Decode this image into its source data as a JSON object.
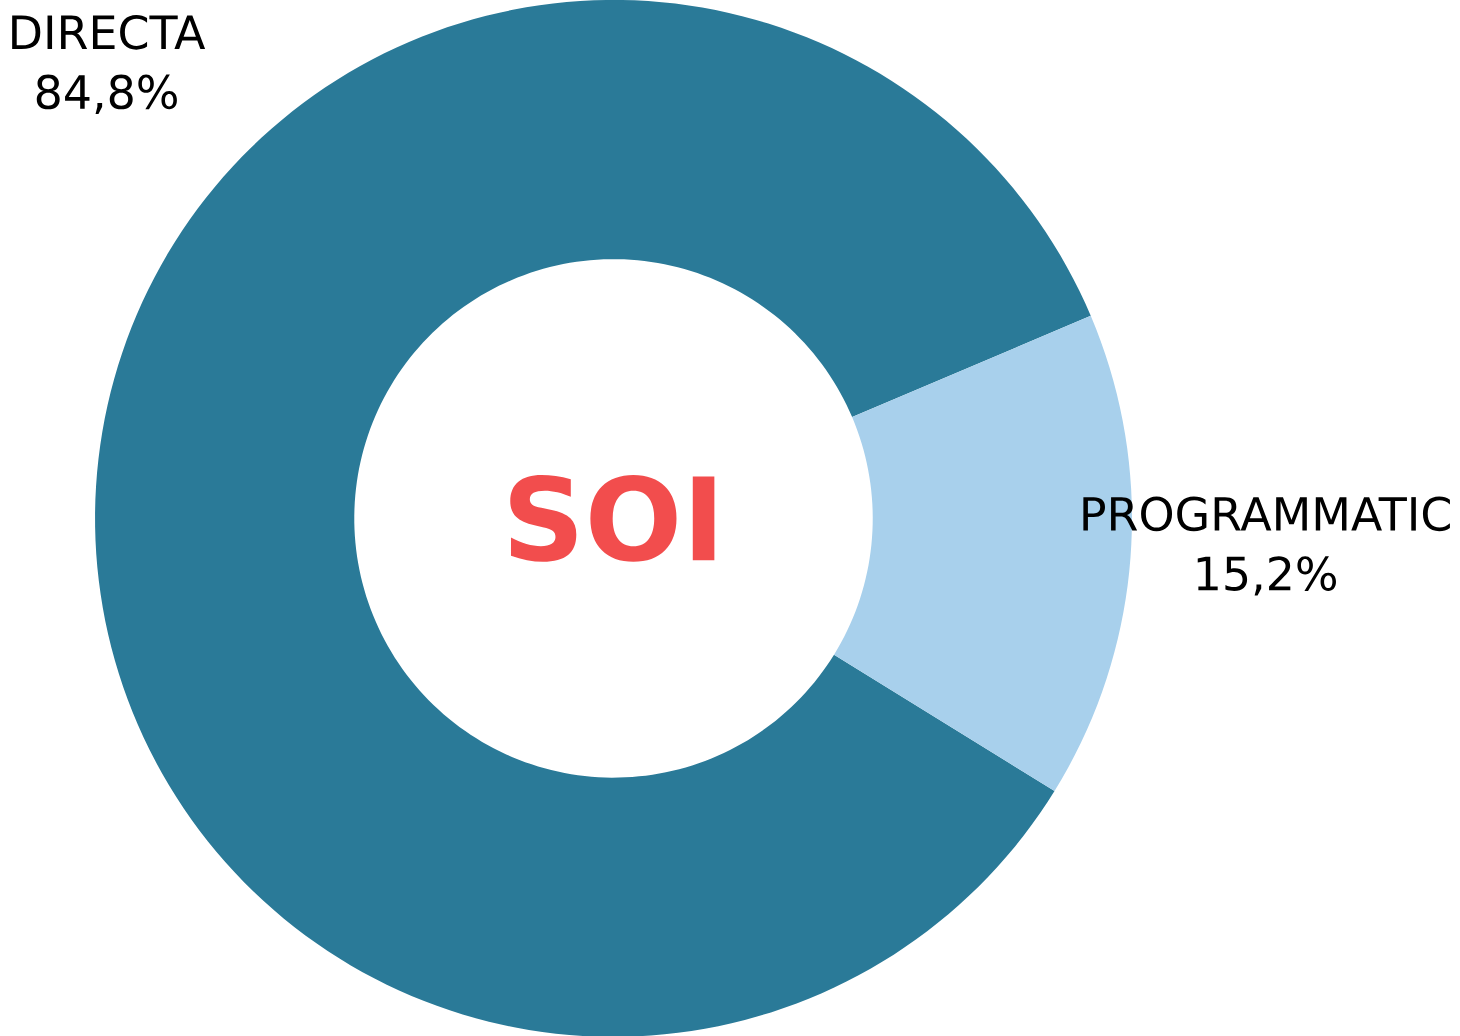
{
  "chart_data": {
    "type": "donut",
    "title": "SOI",
    "categories": [
      "DIRECTA",
      "PROGRAMMATIC"
    ],
    "values": [
      84.8,
      15.2
    ],
    "value_labels": [
      "84,8%",
      "15,2%"
    ],
    "colors": [
      "#2a7a98",
      "#a8d0ec"
    ]
  }
}
